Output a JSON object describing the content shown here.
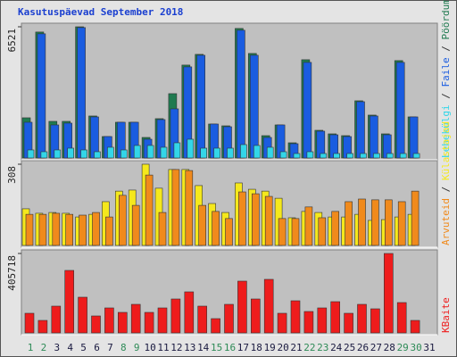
{
  "chart_data": [
    {
      "type": "bar",
      "title": "Kasutuspäevad September 2018",
      "legend_separator": " / ",
      "ylim": [
        0,
        6521
      ],
      "yticks": [
        6521
      ],
      "series": [
        {
          "name": "Pöördumisi",
          "color": "#1f7a50",
          "values": [
            1998,
            6260,
            1820,
            1820,
            6521,
            2087,
            1066,
            1776,
            1776,
            1021,
            1954,
            3197,
            4618,
            5150,
            1687,
            1598,
            6438,
            5195,
            1110,
            1643,
            755,
            4884,
            1376,
            1199,
            1110,
            2842,
            2131,
            1199,
            4840,
            2042,
            null
          ]
        },
        {
          "name": "Faile",
          "color": "#1a5ce0",
          "values": [
            1776,
            6172,
            1643,
            1732,
            6482,
            2042,
            1066,
            1776,
            1776,
            932,
            1909,
            2442,
            4529,
            5106,
            1687,
            1554,
            6349,
            5106,
            1021,
            1643,
            710,
            4751,
            1332,
            1154,
            1066,
            2797,
            2087,
            1154,
            4751,
            2042,
            null
          ]
        },
        {
          "name": "Lehekülgi",
          "color": "#33d6e8",
          "values": [
            400,
            311,
            400,
            488,
            400,
            311,
            533,
            400,
            622,
            622,
            533,
            755,
            932,
            488,
            488,
            488,
            666,
            622,
            533,
            311,
            222,
            311,
            222,
            222,
            222,
            222,
            222,
            222,
            222,
            222,
            null
          ]
        }
      ]
    },
    {
      "type": "bar",
      "legend_separator": " / ",
      "ylim": [
        0,
        308
      ],
      "yticks": [
        308
      ],
      "series": [
        {
          "name": "Külastajad",
          "color": "#f5e81c",
          "values": [
            139,
            122,
            125,
            122,
            108,
            118,
            166,
            206,
            210,
            308,
            217,
            288,
            288,
            227,
            159,
            125,
            237,
            213,
            206,
            179,
            105,
            129,
            125,
            108,
            108,
            118,
            95,
            98,
            108,
            118,
            null
          ]
        },
        {
          "name": "Arvuteid",
          "color": "#f08a1c",
          "values": [
            118,
            118,
            122,
            118,
            115,
            125,
            108,
            190,
            152,
            267,
            125,
            288,
            284,
            152,
            129,
            102,
            203,
            196,
            186,
            102,
            102,
            146,
            105,
            129,
            166,
            176,
            173,
            173,
            166,
            206,
            null
          ]
        }
      ]
    },
    {
      "type": "bar",
      "ylim": [
        0,
        405718
      ],
      "yticks": [
        405718
      ],
      "categories": [
        "1",
        "2",
        "3",
        "4",
        "5",
        "6",
        "7",
        "8",
        "9",
        "10",
        "11",
        "12",
        "13",
        "14",
        "15",
        "16",
        "17",
        "18",
        "19",
        "20",
        "21",
        "22",
        "23",
        "24",
        "25",
        "26",
        "27",
        "28",
        "29",
        "30",
        "31"
      ],
      "category_colors": [
        "#2e8b57",
        "#2e8b57",
        "#1a1a40",
        "#1a1a40",
        "#1a1a40",
        "#1a1a40",
        "#1a1a40",
        "#2e8b57",
        "#2e8b57",
        "#1a1a40",
        "#1a1a40",
        "#1a1a40",
        "#1a1a40",
        "#1a1a40",
        "#2e8b57",
        "#2e8b57",
        "#1a1a40",
        "#1a1a40",
        "#1a1a40",
        "#1a1a40",
        "#1a1a40",
        "#2e8b57",
        "#2e8b57",
        "#1a1a40",
        "#1a1a40",
        "#1a1a40",
        "#1a1a40",
        "#1a1a40",
        "#2e8b57",
        "#2e8b57",
        "#1a1a40"
      ],
      "series": [
        {
          "name": "KBaite",
          "color": "#ee1c1c",
          "values": [
            100300,
            63826,
            136770,
            319130,
            182360,
            86621,
            127652,
            104857,
            145888,
            104857,
            127652,
            173242,
            209714,
            136770,
            72944,
            145888,
            264422,
            173242,
            273540,
            100298,
            164124,
            109416,
            127652,
            159565,
            100298,
            145888,
            123093,
            405718,
            155006,
            63826,
            null
          ]
        }
      ]
    }
  ]
}
